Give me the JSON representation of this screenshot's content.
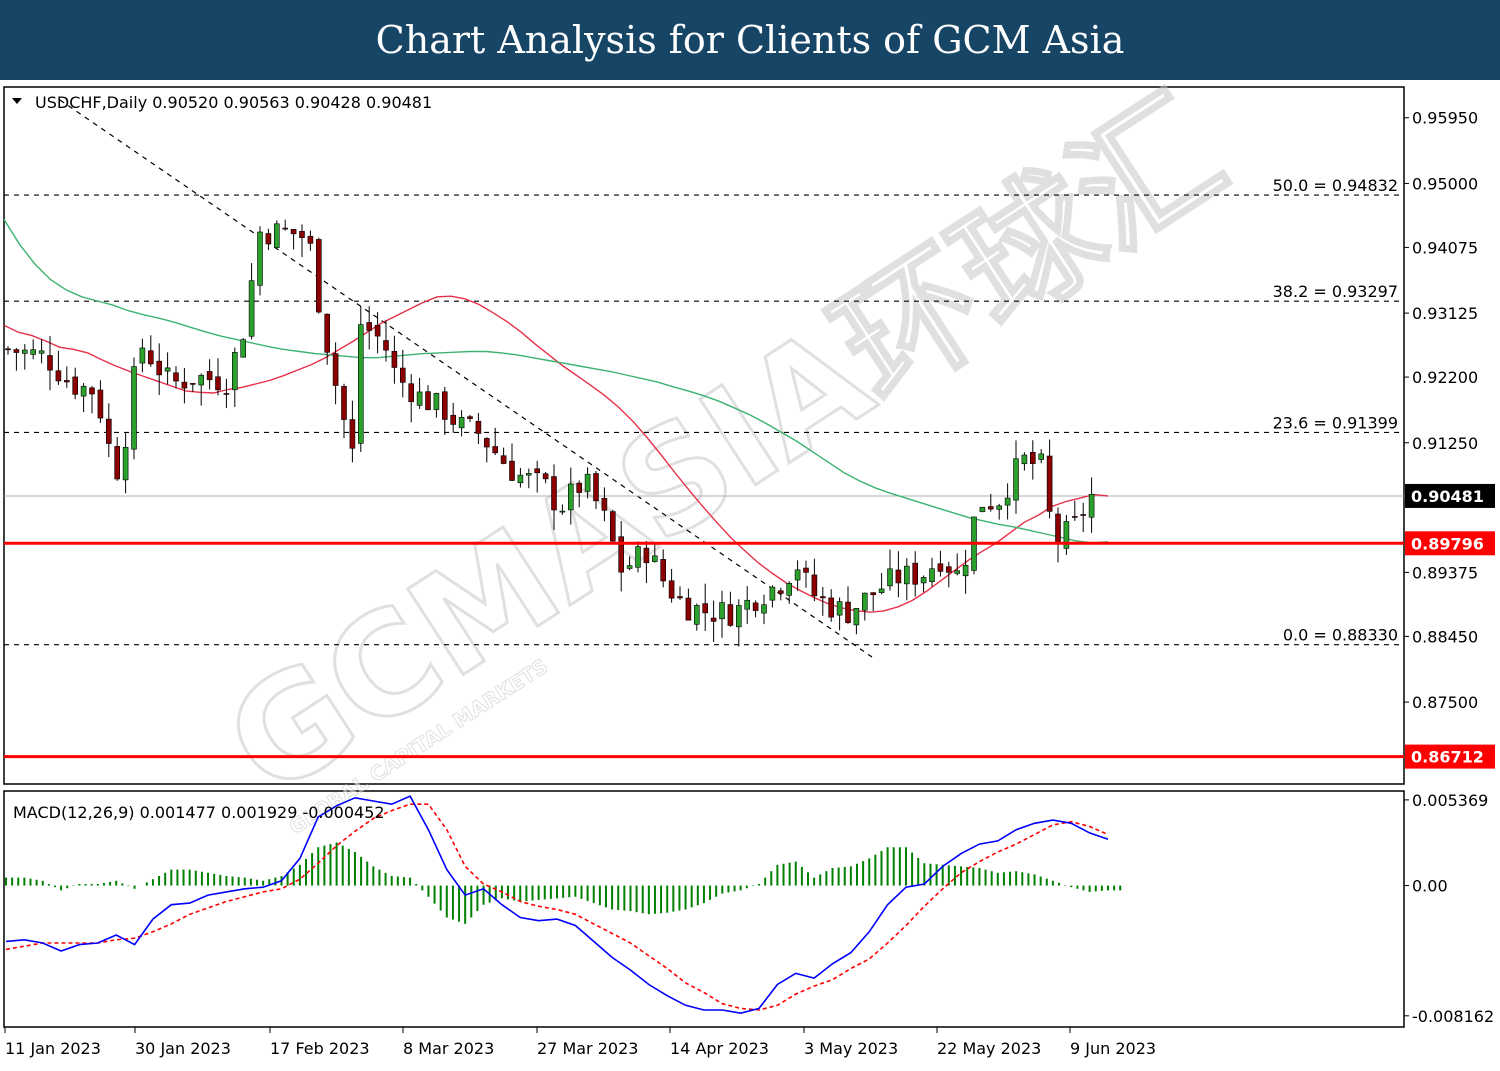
{
  "header": {
    "title": "Chart Analysis for Clients of GCM Asia"
  },
  "chart_data": [
    {
      "type": "candlestick",
      "symbol_info": "USDCHF,Daily  0.90520 0.90563 0.90428 0.90481",
      "ylim": [
        0.8633,
        0.9638
      ],
      "y_ticks": [
        "0.95950",
        "0.95000",
        "0.94075",
        "0.93125",
        "0.92200",
        "0.91250",
        "0.89375",
        "0.88450",
        "0.87500"
      ],
      "x_tick_labels": [
        "11 Jan 2023",
        "30 Jan 2023",
        "17 Feb 2023",
        "8 Mar 2023",
        "27 Mar 2023",
        "14 Apr 2023",
        "3 May 2023",
        "22 May 2023",
        "9 Jun 2023"
      ],
      "current_price": {
        "label": "0.90481",
        "value": 0.90481,
        "color": "#000000"
      },
      "levels": [
        {
          "label": "0.89796",
          "value": 0.89796,
          "color": "#ff0000"
        },
        {
          "label": "0.86712",
          "value": 0.86712,
          "color": "#ff0000"
        }
      ],
      "fibonacci": [
        {
          "label": "50.0 = 0.94832",
          "value": 0.94832
        },
        {
          "label": "38.2 = 0.93297",
          "value": 0.93297
        },
        {
          "label": "23.6 = 0.91399",
          "value": 0.91399
        },
        {
          "label": "0.0 = 0.88330",
          "value": 0.8833
        }
      ],
      "moving_averages": [
        {
          "color": "#e8304a",
          "values": [
            0.9295,
            0.9285,
            0.928,
            0.9272,
            0.9263,
            0.926,
            0.9255,
            0.9245,
            0.9236,
            0.9228,
            0.9221,
            0.9214,
            0.9207,
            0.92,
            0.9198,
            0.9197,
            0.9202,
            0.9205,
            0.921,
            0.9215,
            0.9222,
            0.923,
            0.9238,
            0.9248,
            0.926,
            0.9272,
            0.9285,
            0.9298,
            0.9308,
            0.9318,
            0.9328,
            0.9336,
            0.9337,
            0.9333,
            0.9325,
            0.9313,
            0.93,
            0.9285,
            0.9268,
            0.9252,
            0.9236,
            0.9222,
            0.9208,
            0.9193,
            0.9176,
            0.9156,
            0.9133,
            0.9108,
            0.9082,
            0.9057,
            0.9033,
            0.901,
            0.8988,
            0.8969,
            0.8951,
            0.8936,
            0.8922,
            0.8911,
            0.8901,
            0.8892,
            0.8886,
            0.8882,
            0.888,
            0.8882,
            0.8888,
            0.8897,
            0.891,
            0.8925,
            0.894,
            0.8955,
            0.8968,
            0.898,
            0.8995,
            0.901,
            0.902,
            0.9033,
            0.904,
            0.9045,
            0.905,
            0.9048
          ]
        },
        {
          "color": "#3cb371",
          "values": [
            0.9448,
            0.9412,
            0.9383,
            0.9361,
            0.9346,
            0.9336,
            0.933,
            0.9324,
            0.9316,
            0.931,
            0.9305,
            0.9299,
            0.9292,
            0.9285,
            0.9279,
            0.9274,
            0.9269,
            0.9264,
            0.926,
            0.9257,
            0.9254,
            0.9252,
            0.925,
            0.9248,
            0.9248,
            0.925,
            0.9252,
            0.9254,
            0.9255,
            0.9256,
            0.9257,
            0.9257,
            0.9255,
            0.9252,
            0.9248,
            0.9244,
            0.924,
            0.9236,
            0.9232,
            0.9228,
            0.9223,
            0.9218,
            0.9213,
            0.9206,
            0.92,
            0.9193,
            0.9185,
            0.9175,
            0.9165,
            0.9153,
            0.914,
            0.9127,
            0.9112,
            0.9097,
            0.9082,
            0.907,
            0.906,
            0.9052,
            0.9045,
            0.9038,
            0.9031,
            0.9024,
            0.9017,
            0.9012,
            0.9007,
            0.9003,
            0.8998,
            0.8993,
            0.8988,
            0.8983,
            0.898,
            0.8982
          ]
        }
      ]
    },
    {
      "type": "macd",
      "label": "MACD(12,26,9) 0.001477 0.001929 -0.000452",
      "ylim": [
        -0.0088,
        0.0058
      ],
      "y_ticks": [
        "0.005369",
        "0.00",
        "-0.008162"
      ],
      "series": [
        {
          "name": "MACD(12,26,9)",
          "color": "#0000ff",
          "values": [
            -0.0035,
            -0.0034,
            -0.0036,
            -0.0041,
            -0.0037,
            -0.0036,
            -0.0031,
            -0.0037,
            -0.0021,
            -0.0012,
            -0.0011,
            -0.0006,
            -0.0004,
            -0.0002,
            -0.0001,
            0.0003,
            0.0017,
            0.0043,
            0.005,
            0.0055,
            0.0053,
            0.0051,
            0.0056,
            0.0035,
            0.001,
            -0.0006,
            -0.0002,
            -0.0012,
            -0.002,
            -0.0022,
            -0.0021,
            -0.0025,
            -0.0035,
            -0.0045,
            -0.0053,
            -0.0062,
            -0.0069,
            -0.0075,
            -0.0078,
            -0.0078,
            -0.008,
            -0.0077,
            -0.0062,
            -0.0055,
            -0.0058,
            -0.0049,
            -0.0042,
            -0.0029,
            -0.0012,
            -0.0001,
            0.0001,
            0.0012,
            0.002,
            0.0026,
            0.0028,
            0.0035,
            0.0039,
            0.0041,
            0.0039,
            0.0033,
            0.0029
          ]
        },
        {
          "name": "Signal",
          "color": "#ff0000",
          "values": [
            -0.004,
            -0.0038,
            -0.0036,
            -0.0036,
            -0.0036,
            -0.0036,
            -0.0034,
            -0.0033,
            -0.0029,
            -0.0024,
            -0.0018,
            -0.0014,
            -0.001,
            -0.0007,
            -0.0004,
            -0.0002,
            0.0004,
            0.0014,
            0.0025,
            0.0034,
            0.0042,
            0.0047,
            0.0051,
            0.0051,
            0.0035,
            0.0012,
            0.0001,
            -0.0004,
            -0.001,
            -0.0013,
            -0.0015,
            -0.0018,
            -0.0024,
            -0.003,
            -0.0036,
            -0.0044,
            -0.0052,
            -0.0061,
            -0.0067,
            -0.0074,
            -0.0077,
            -0.0078,
            -0.0075,
            -0.0068,
            -0.0063,
            -0.0059,
            -0.0052,
            -0.0046,
            -0.0036,
            -0.0025,
            -0.0013,
            -0.0002,
            0.0008,
            0.0015,
            0.0021,
            0.0026,
            0.0032,
            0.0038,
            0.004,
            0.0037,
            0.0032
          ]
        },
        {
          "name": "Histogram",
          "color": "#008000",
          "values": [
            0.0005,
            0.0005,
            0.0003,
            -0.0003,
            0.0001,
            0.0001,
            0.0003,
            -0.0002,
            0.0004,
            0.001,
            0.001,
            0.0008,
            0.0006,
            0.0005,
            0.0003,
            0.0006,
            0.0013,
            0.0024,
            0.0027,
            0.0021,
            0.0012,
            0.0006,
            0.0005,
            -0.0007,
            -0.002,
            -0.0024,
            -0.0012,
            -0.0008,
            -0.001,
            -0.0009,
            -0.0008,
            -0.0007,
            -0.0011,
            -0.0015,
            -0.0016,
            -0.0018,
            -0.0017,
            -0.0015,
            -0.0011,
            -0.0005,
            -0.0003,
            0.0001,
            0.0013,
            0.0015,
            0.0005,
            0.0011,
            0.0012,
            0.0017,
            0.0024,
            0.0024,
            0.0014,
            0.0013,
            0.0012,
            0.0011,
            0.0008,
            0.0009,
            0.0007,
            0.0003,
            -0.0001,
            -0.0004,
            -0.0003
          ]
        }
      ]
    }
  ],
  "watermark": {
    "text": "GCMASIA环球汇",
    "subtext": "GLOBAL CAPITAL MARKETS"
  }
}
